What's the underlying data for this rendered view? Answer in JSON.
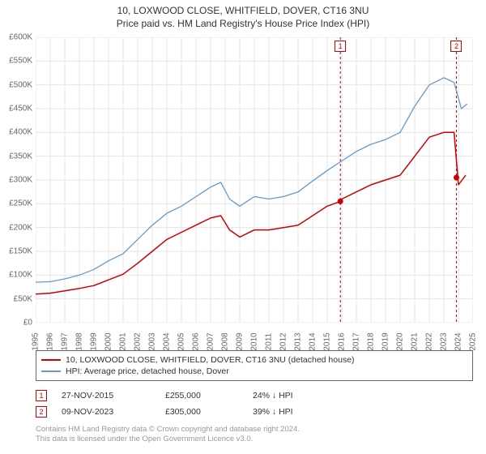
{
  "title_line1": "10, LOXWOOD CLOSE, WHITFIELD, DOVER, CT16 3NU",
  "title_line2": "Price paid vs. HM Land Registry's House Price Index (HPI)",
  "chart": {
    "type": "line",
    "background_color": "#ffffff",
    "grid_color": "#e6e6e6",
    "axis_color": "#e6e6e6",
    "label_color": "#666666",
    "label_fontsize": 10,
    "xlim_years": [
      1995,
      2025
    ],
    "ylim": [
      0,
      600000
    ],
    "ytick_step": 50000,
    "x_labels": [
      "1995",
      "1996",
      "1997",
      "1998",
      "1999",
      "2000",
      "2001",
      "2002",
      "2003",
      "2004",
      "2005",
      "2006",
      "2007",
      "2008",
      "2009",
      "2010",
      "2011",
      "2012",
      "2013",
      "2014",
      "2015",
      "2016",
      "2017",
      "2018",
      "2019",
      "2020",
      "2021",
      "2022",
      "2023",
      "2024",
      "2025"
    ],
    "y_labels": [
      "£0",
      "£50K",
      "£100K",
      "£150K",
      "£200K",
      "£250K",
      "£300K",
      "£350K",
      "£400K",
      "£450K",
      "£500K",
      "£550K",
      "£600K"
    ],
    "series": [
      {
        "name": "10, LOXWOOD CLOSE, WHITFIELD, DOVER, CT16 3NU (detached house)",
        "color": "#cc0000",
        "line_width": 1.5,
        "data": [
          [
            1995,
            60000
          ],
          [
            1996,
            62000
          ],
          [
            1997,
            67000
          ],
          [
            1998,
            72000
          ],
          [
            1999,
            78000
          ],
          [
            2000,
            90000
          ],
          [
            2001,
            102000
          ],
          [
            2002,
            125000
          ],
          [
            2003,
            150000
          ],
          [
            2004,
            175000
          ],
          [
            2005,
            190000
          ],
          [
            2006,
            205000
          ],
          [
            2007,
            220000
          ],
          [
            2007.7,
            225000
          ],
          [
            2008.3,
            195000
          ],
          [
            2009,
            180000
          ],
          [
            2010,
            195000
          ],
          [
            2011,
            195000
          ],
          [
            2012,
            200000
          ],
          [
            2013,
            205000
          ],
          [
            2014,
            225000
          ],
          [
            2015,
            245000
          ],
          [
            2015.9,
            255000
          ],
          [
            2016,
            260000
          ],
          [
            2017,
            275000
          ],
          [
            2018,
            290000
          ],
          [
            2019,
            300000
          ],
          [
            2020,
            310000
          ],
          [
            2021,
            350000
          ],
          [
            2022,
            390000
          ],
          [
            2023,
            400000
          ],
          [
            2023.7,
            400000
          ],
          [
            2024.0,
            290000
          ],
          [
            2024.5,
            310000
          ]
        ]
      },
      {
        "name": "HPI: Average price, detached house, Dover",
        "color": "#6699cc",
        "line_width": 1.3,
        "data": [
          [
            1995,
            85000
          ],
          [
            1996,
            86000
          ],
          [
            1997,
            92000
          ],
          [
            1998,
            100000
          ],
          [
            1999,
            112000
          ],
          [
            2000,
            130000
          ],
          [
            2001,
            145000
          ],
          [
            2002,
            175000
          ],
          [
            2003,
            205000
          ],
          [
            2004,
            230000
          ],
          [
            2005,
            245000
          ],
          [
            2006,
            265000
          ],
          [
            2007,
            285000
          ],
          [
            2007.7,
            295000
          ],
          [
            2008.3,
            260000
          ],
          [
            2009,
            245000
          ],
          [
            2010,
            265000
          ],
          [
            2011,
            260000
          ],
          [
            2012,
            265000
          ],
          [
            2013,
            275000
          ],
          [
            2014,
            298000
          ],
          [
            2015,
            320000
          ],
          [
            2016,
            340000
          ],
          [
            2017,
            360000
          ],
          [
            2018,
            375000
          ],
          [
            2019,
            385000
          ],
          [
            2020,
            400000
          ],
          [
            2021,
            455000
          ],
          [
            2022,
            500000
          ],
          [
            2023,
            515000
          ],
          [
            2023.7,
            505000
          ],
          [
            2024.2,
            450000
          ],
          [
            2024.6,
            460000
          ]
        ]
      }
    ],
    "markers": [
      {
        "id": "1",
        "year": 2015.9,
        "value": 255000,
        "line_color": "#cc0000",
        "line_dash": "3,3"
      },
      {
        "id": "2",
        "year": 2023.86,
        "value": 305000,
        "line_color": "#cc0000",
        "line_dash": "3,3"
      }
    ],
    "marker_dot_color": "#cc0000",
    "marker_dot_radius": 3.5
  },
  "legend": {
    "border_color": "#666666",
    "items": [
      {
        "color": "#cc0000",
        "label": "10, LOXWOOD CLOSE, WHITFIELD, DOVER, CT16 3NU (detached house)"
      },
      {
        "color": "#6699cc",
        "label": "HPI: Average price, detached house, Dover"
      }
    ]
  },
  "transactions": [
    {
      "badge": "1",
      "date": "27-NOV-2015",
      "price": "£255,000",
      "diff": "24% ↓ HPI"
    },
    {
      "badge": "2",
      "date": "09-NOV-2023",
      "price": "£305,000",
      "diff": "39% ↓ HPI"
    }
  ],
  "footnote_line1": "Contains HM Land Registry data © Crown copyright and database right 2024.",
  "footnote_line2": "This data is licensed under the Open Government Licence v3.0.",
  "colors": {
    "text": "#333333",
    "muted": "#999999"
  }
}
